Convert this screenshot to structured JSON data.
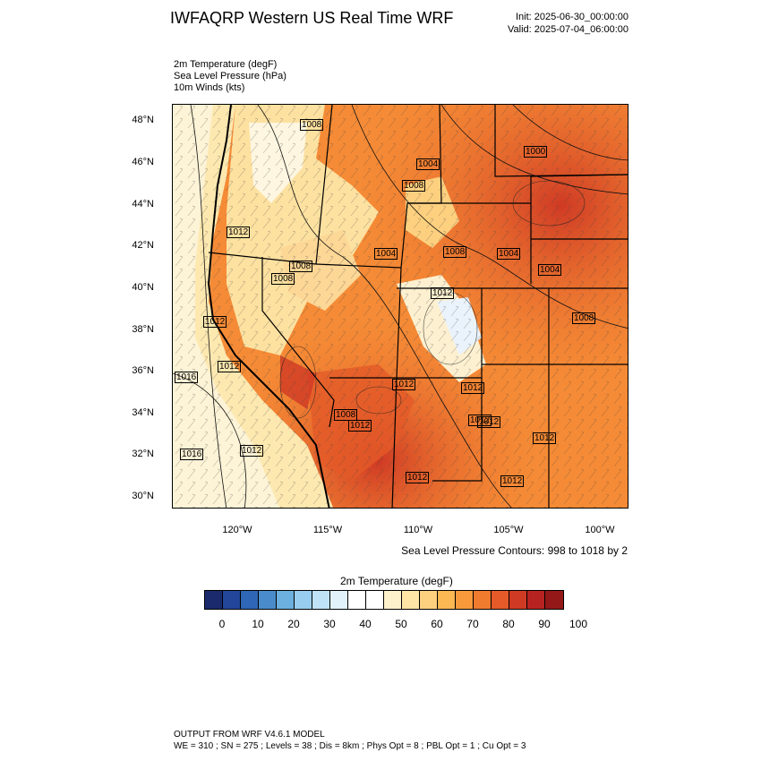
{
  "header": {
    "title": "IWFAQRP Western US Real Time WRF",
    "init": "Init: 2025-06-30_00:00:00",
    "valid": "Valid: 2025-07-04_06:00:00"
  },
  "fields": [
    "2m Temperature   (degF)",
    "Sea Level Pressure   (hPa)",
    "10m Winds   (kts)"
  ],
  "map": {
    "lat_labels": [
      "48°N",
      "46°N",
      "44°N",
      "42°N",
      "40°N",
      "38°N",
      "36°N",
      "34°N",
      "32°N",
      "30°N"
    ],
    "lon_labels": [
      "120°W",
      "115°W",
      "110°W",
      "105°W",
      "100°W"
    ],
    "pressure_labels": [
      "1008",
      "1004",
      "1000",
      "1008",
      "1012",
      "1008",
      "1004",
      "1004",
      "1008",
      "1008",
      "1012",
      "1004",
      "1008",
      "1012",
      "1016",
      "1012",
      "1012",
      "1012",
      "1008",
      "1012",
      "1012",
      "1016",
      "1012",
      "1012",
      "1012",
      "1012",
      "1012"
    ],
    "contour_note": "Sea Level Pressure Contours: 998 to 1018 by 2"
  },
  "colorbar": {
    "title": "2m Temperature   (degF)",
    "colors": [
      "#1a2a6c",
      "#23469a",
      "#2f66b5",
      "#4a8ccb",
      "#6bb0de",
      "#99cdef",
      "#bfe2f7",
      "#e2f2fb",
      "#ffffff",
      "#ffffff",
      "#fdf1cc",
      "#fee5a6",
      "#fdd07f",
      "#fcb852",
      "#f89a3c",
      "#f07a2e",
      "#e45a28",
      "#cf3a24",
      "#b72320",
      "#951818"
    ],
    "labels": [
      "0",
      "10",
      "20",
      "30",
      "40",
      "50",
      "60",
      "70",
      "80",
      "90",
      "100"
    ]
  },
  "footer": {
    "line1": "OUTPUT FROM WRF V4.6.1 MODEL",
    "line2": "WE = 310 ; SN = 275 ; Levels = 38 ; Dis = 8km ; Phys Opt = 8 ; PBL Opt = 1 ; Cu Opt = 3"
  }
}
